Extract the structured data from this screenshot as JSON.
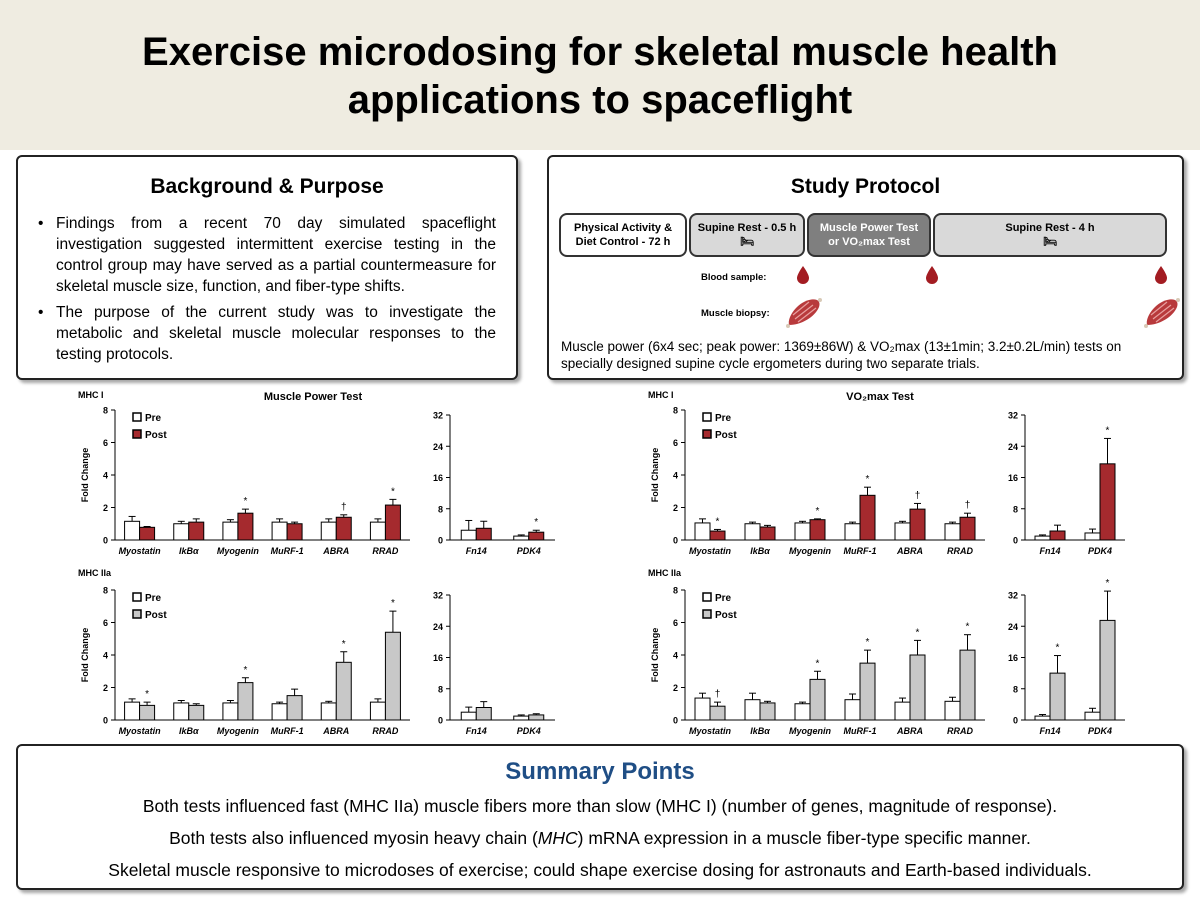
{
  "title": {
    "line1": "Exercise microdosing for skeletal muscle health",
    "line2": "applications to spaceflight"
  },
  "background": {
    "heading": "Background & Purpose",
    "bullets": [
      "Findings from a recent 70 day simulated spaceflight investigation suggested intermittent exercise testing in the control group may have served as a partial countermeasure for skeletal muscle size, function, and fiber-type shifts.",
      "The purpose of the current study was to investigate the metabolic and skeletal muscle molecular responses to the testing protocols."
    ]
  },
  "protocol": {
    "heading": "Study Protocol",
    "stages": [
      {
        "line1": "Physical Activity &",
        "line2": "Diet Control - 72 h",
        "fill": "#ffffff",
        "text_color": "#000000",
        "bed": false
      },
      {
        "line1": "Supine Rest - 0.5 h",
        "line2": "",
        "fill": "#d9d9d9",
        "text_color": "#000000",
        "bed": true
      },
      {
        "line1": "Muscle Power Test",
        "line2": "or VO₂max Test",
        "fill": "#7f7f7f",
        "text_color": "#ffffff",
        "bed": false
      },
      {
        "line1": "Supine Rest - 4 h",
        "line2": "",
        "fill": "#d9d9d9",
        "text_color": "#000000",
        "bed": true
      }
    ],
    "blood_label": "Blood sample:",
    "biopsy_label": "Muscle biopsy:",
    "note": "Muscle power (6x4 sec; peak power: 1369±86W) & VO₂max (13±1min; 3.2±0.2L/min) tests on specially designed supine cycle ergometers during two separate trials.",
    "blood_color": "#a31c22",
    "muscle_color": "#b83a3c"
  },
  "summary": {
    "heading": "Summary Points",
    "points": [
      "Both tests influenced fast (MHC IIa) muscle fibers more than slow (MHC I) (number of genes, magnitude of response).",
      "Both tests also influenced myosin heavy chain (MHC) mRNA expression in a muscle fiber-type specific manner.",
      "Skeletal muscle responsive to microdoses of exercise; could shape exercise dosing for astronauts and Earth-based individuals."
    ]
  },
  "chart_data": [
    {
      "type": "bar",
      "title": "Muscle Power Test",
      "panel_label": "MHC I",
      "ylabel": "Fold Change",
      "ylim": [
        0,
        8
      ],
      "yticks": [
        0,
        2,
        4,
        6,
        8
      ],
      "categories": [
        "Myostatin",
        "IkBα",
        "Myogenin",
        "MuRF-1",
        "ABRA",
        "RRAD"
      ],
      "series": [
        {
          "name": "Pre",
          "color": "#ffffff",
          "values": [
            1.15,
            1.0,
            1.1,
            1.1,
            1.1,
            1.1
          ],
          "errors": [
            0.3,
            0.15,
            0.15,
            0.2,
            0.2,
            0.2
          ]
        },
        {
          "name": "Post",
          "color": "#a52a2e",
          "values": [
            0.78,
            1.1,
            1.65,
            1.0,
            1.4,
            2.15
          ],
          "errors": [
            0.05,
            0.2,
            0.25,
            0.1,
            0.15,
            0.35
          ]
        }
      ],
      "markers": [
        "",
        "",
        "*",
        "",
        "†",
        "*"
      ],
      "legend": "top-left"
    },
    {
      "type": "bar",
      "title": "",
      "ylabel": "",
      "ylim": [
        0,
        32
      ],
      "yticks": [
        0,
        8,
        16,
        24,
        32
      ],
      "categories": [
        "Fn14",
        "PDK4"
      ],
      "series": [
        {
          "name": "Pre",
          "color": "#ffffff",
          "values": [
            2.5,
            1.0
          ],
          "errors": [
            2.5,
            0.3
          ]
        },
        {
          "name": "Post",
          "color": "#a52a2e",
          "values": [
            3.0,
            2.0
          ],
          "errors": [
            1.8,
            0.5
          ]
        }
      ],
      "markers": [
        "",
        "*"
      ]
    },
    {
      "type": "bar",
      "title": "",
      "panel_label": "MHC IIa",
      "ylabel": "Fold Change",
      "ylim": [
        0,
        8
      ],
      "yticks": [
        0,
        2,
        4,
        6,
        8
      ],
      "categories": [
        "Myostatin",
        "IkBα",
        "Myogenin",
        "MuRF-1",
        "ABRA",
        "RRAD"
      ],
      "series": [
        {
          "name": "Pre",
          "color": "#ffffff",
          "values": [
            1.1,
            1.05,
            1.05,
            1.0,
            1.05,
            1.1
          ],
          "errors": [
            0.2,
            0.15,
            0.15,
            0.1,
            0.1,
            0.2
          ]
        },
        {
          "name": "Post",
          "color": "#c8c8c8",
          "values": [
            0.9,
            0.9,
            2.3,
            1.5,
            3.55,
            5.4
          ],
          "errors": [
            0.2,
            0.1,
            0.3,
            0.4,
            0.65,
            1.3
          ]
        }
      ],
      "markers": [
        "*",
        "",
        "*",
        "",
        "*",
        "*"
      ],
      "legend": "top-left"
    },
    {
      "type": "bar",
      "title": "",
      "ylabel": "",
      "ylim": [
        0,
        32
      ],
      "yticks": [
        0,
        8,
        16,
        24,
        32
      ],
      "categories": [
        "Fn14",
        "PDK4"
      ],
      "series": [
        {
          "name": "Pre",
          "color": "#ffffff",
          "values": [
            2.0,
            1.0
          ],
          "errors": [
            1.3,
            0.3
          ]
        },
        {
          "name": "Post",
          "color": "#c8c8c8",
          "values": [
            3.2,
            1.3
          ],
          "errors": [
            1.5,
            0.3
          ]
        }
      ],
      "markers": [
        "",
        ""
      ]
    },
    {
      "type": "bar",
      "title": "VO₂max Test",
      "panel_label": "MHC I",
      "ylabel": "Fold Change",
      "ylim": [
        0,
        8
      ],
      "yticks": [
        0,
        2,
        4,
        6,
        8
      ],
      "categories": [
        "Myostatin",
        "IkBα",
        "Myogenin",
        "MuRF-1",
        "ABRA",
        "RRAD"
      ],
      "series": [
        {
          "name": "Pre",
          "color": "#ffffff",
          "values": [
            1.05,
            1.0,
            1.05,
            1.0,
            1.05,
            1.0
          ],
          "errors": [
            0.25,
            0.1,
            0.1,
            0.1,
            0.1,
            0.1
          ]
        },
        {
          "name": "Post",
          "color": "#a52a2e",
          "values": [
            0.55,
            0.8,
            1.25,
            2.75,
            1.9,
            1.4
          ],
          "errors": [
            0.1,
            0.1,
            0.05,
            0.5,
            0.35,
            0.25
          ]
        }
      ],
      "markers": [
        "*",
        "",
        "*",
        "*",
        "†",
        "†"
      ],
      "legend": "top-left"
    },
    {
      "type": "bar",
      "title": "",
      "ylabel": "",
      "ylim": [
        0,
        32
      ],
      "yticks": [
        0,
        8,
        16,
        24,
        32
      ],
      "categories": [
        "Fn14",
        "PDK4"
      ],
      "series": [
        {
          "name": "Pre",
          "color": "#ffffff",
          "values": [
            1.0,
            1.8
          ],
          "errors": [
            0.3,
            1.0
          ]
        },
        {
          "name": "Post",
          "color": "#a52a2e",
          "values": [
            2.3,
            19.5
          ],
          "errors": [
            1.5,
            6.5
          ]
        }
      ],
      "markers": [
        "",
        "*"
      ]
    },
    {
      "type": "bar",
      "title": "",
      "panel_label": "MHC IIa",
      "ylabel": "Fold Change",
      "ylim": [
        0,
        8
      ],
      "yticks": [
        0,
        2,
        4,
        6,
        8
      ],
      "categories": [
        "Myostatin",
        "IkBα",
        "Myogenin",
        "MuRF-1",
        "ABRA",
        "RRAD"
      ],
      "series": [
        {
          "name": "Pre",
          "color": "#ffffff",
          "values": [
            1.35,
            1.25,
            1.0,
            1.25,
            1.1,
            1.15
          ],
          "errors": [
            0.3,
            0.4,
            0.1,
            0.35,
            0.25,
            0.25
          ]
        },
        {
          "name": "Post",
          "color": "#c8c8c8",
          "values": [
            0.85,
            1.05,
            2.5,
            3.5,
            4.0,
            4.3
          ],
          "errors": [
            0.25,
            0.1,
            0.5,
            0.8,
            0.9,
            0.95
          ]
        }
      ],
      "markers": [
        "†",
        "",
        "*",
        "*",
        "*",
        "*"
      ],
      "legend": "top-left"
    },
    {
      "type": "bar",
      "title": "",
      "ylabel": "",
      "ylim": [
        0,
        32
      ],
      "yticks": [
        0,
        8,
        16,
        24,
        32
      ],
      "categories": [
        "Fn14",
        "PDK4"
      ],
      "series": [
        {
          "name": "Pre",
          "color": "#ffffff",
          "values": [
            1.0,
            2.0
          ],
          "errors": [
            0.4,
            1.0
          ]
        },
        {
          "name": "Post",
          "color": "#c8c8c8",
          "values": [
            12.0,
            25.5
          ],
          "errors": [
            4.5,
            7.5
          ]
        }
      ],
      "markers": [
        "*",
        "*"
      ]
    }
  ]
}
